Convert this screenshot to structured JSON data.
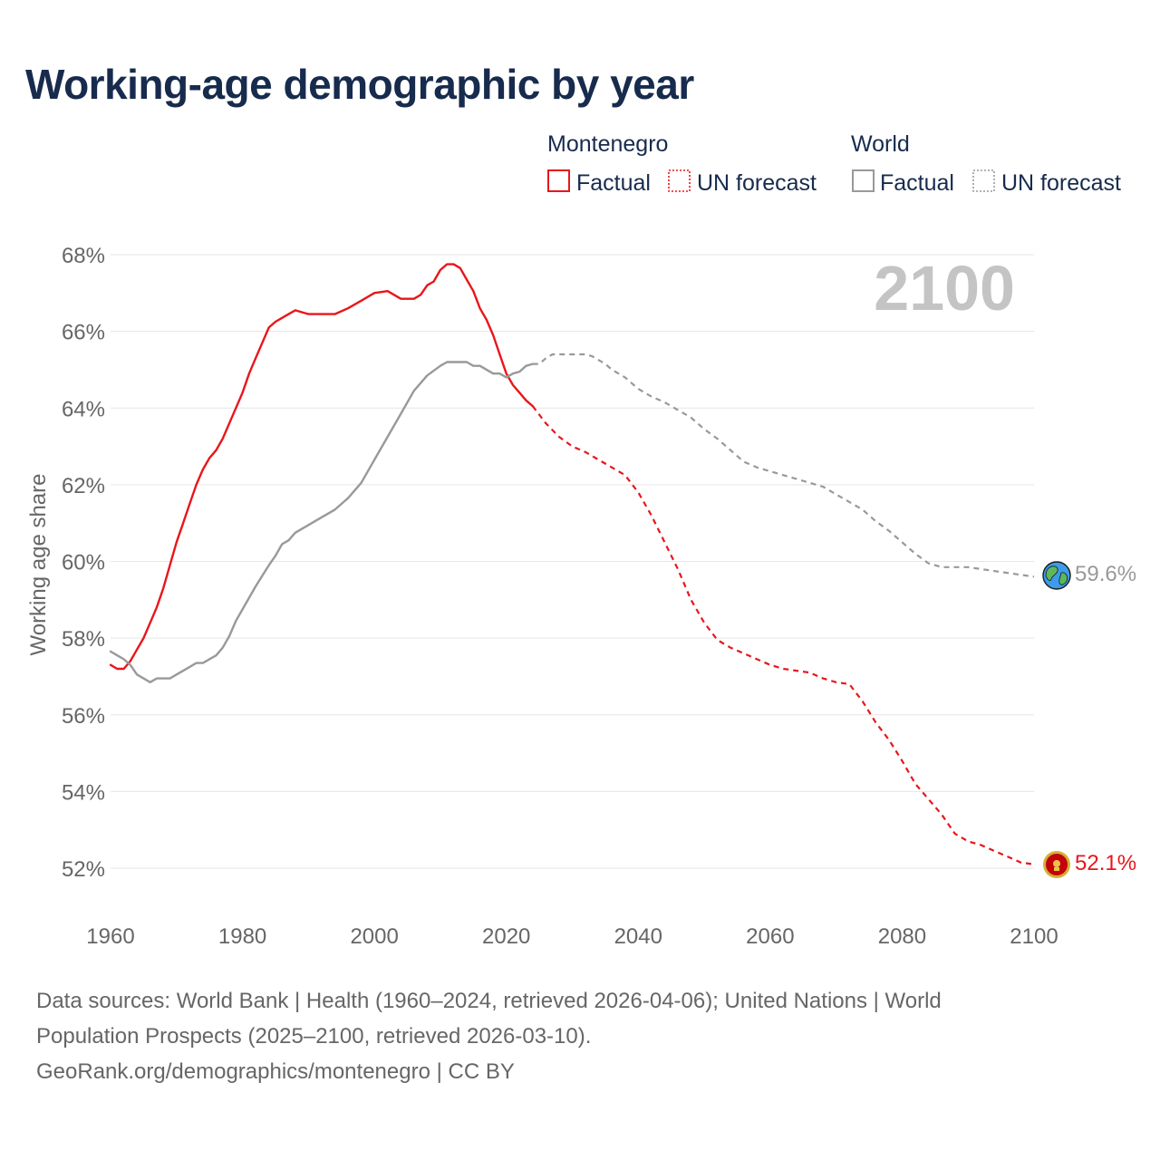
{
  "title": "Working-age demographic by year",
  "legend": {
    "groups": [
      {
        "name": "Montenegro",
        "color": "#e8161b",
        "factual_label": "Factual",
        "forecast_label": "UN forecast"
      },
      {
        "name": "World",
        "color": "#999999",
        "factual_label": "Factual",
        "forecast_label": "UN forecast"
      }
    ]
  },
  "year_label": "2100",
  "end_labels": {
    "world": "59.6%",
    "montenegro": "52.1%"
  },
  "markers": {
    "world": "globe-icon",
    "montenegro": "montenegro-flag-icon"
  },
  "colors": {
    "montenegro": "#e8161b",
    "world": "#999999",
    "title": "#172b4d",
    "grid": "#e6e6e6",
    "axis_text": "#666666",
    "legend_text": "#172b4d"
  },
  "source": {
    "line1": "Data sources: World Bank | Health (1960–2024, retrieved 2026-04-06); United Nations | World",
    "line2": "Population Prospects (2025–2100, retrieved 2026-03-10).",
    "line3": "GeoRank.org/demographics/montenegro | CC BY"
  },
  "chart_data": {
    "type": "line",
    "title": "Working-age demographic by year",
    "xlabel": "",
    "ylabel": "Working age share",
    "xlim": [
      1960,
      2100
    ],
    "ylim": [
      51,
      68
    ],
    "x_ticks": [
      1960,
      1980,
      2000,
      2020,
      2040,
      2060,
      2080,
      2100
    ],
    "x_tick_labels": [
      "1960",
      "1980",
      "2000",
      "2020",
      "2040",
      "2060",
      "2080",
      "2100"
    ],
    "y_ticks": [
      52,
      54,
      56,
      58,
      60,
      62,
      64,
      66,
      68
    ],
    "y_tick_labels": [
      "52%",
      "54%",
      "56%",
      "58%",
      "60%",
      "62%",
      "64%",
      "66%",
      "68%"
    ],
    "grid": true,
    "series": [
      {
        "name": "Montenegro",
        "segment": "Factual",
        "style": "solid",
        "points": [
          [
            1960,
            57.3
          ],
          [
            1961,
            57.2
          ],
          [
            1962,
            57.2
          ],
          [
            1963,
            57.4
          ],
          [
            1964,
            57.7
          ],
          [
            1965,
            58.0
          ],
          [
            1966,
            58.4
          ],
          [
            1967,
            58.8
          ],
          [
            1968,
            59.3
          ],
          [
            1969,
            59.9
          ],
          [
            1970,
            60.5
          ],
          [
            1971,
            61.0
          ],
          [
            1972,
            61.5
          ],
          [
            1973,
            62.0
          ],
          [
            1974,
            62.4
          ],
          [
            1975,
            62.7
          ],
          [
            1976,
            62.9
          ],
          [
            1977,
            63.2
          ],
          [
            1978,
            63.6
          ],
          [
            1979,
            64.0
          ],
          [
            1980,
            64.4
          ],
          [
            1981,
            64.9
          ],
          [
            1982,
            65.3
          ],
          [
            1983,
            65.7
          ],
          [
            1984,
            66.1
          ],
          [
            1985,
            66.25
          ],
          [
            1986,
            66.35
          ],
          [
            1987,
            66.45
          ],
          [
            1988,
            66.55
          ],
          [
            1989,
            66.5
          ],
          [
            1990,
            66.45
          ],
          [
            1992,
            66.45
          ],
          [
            1994,
            66.45
          ],
          [
            1996,
            66.6
          ],
          [
            1998,
            66.8
          ],
          [
            2000,
            67.0
          ],
          [
            2002,
            67.05
          ],
          [
            2004,
            66.85
          ],
          [
            2006,
            66.85
          ],
          [
            2007,
            66.95
          ],
          [
            2008,
            67.2
          ],
          [
            2009,
            67.3
          ],
          [
            2010,
            67.6
          ],
          [
            2011,
            67.75
          ],
          [
            2012,
            67.75
          ],
          [
            2013,
            67.65
          ],
          [
            2014,
            67.35
          ],
          [
            2015,
            67.05
          ],
          [
            2016,
            66.6
          ],
          [
            2017,
            66.3
          ],
          [
            2018,
            65.9
          ],
          [
            2019,
            65.4
          ],
          [
            2020,
            64.9
          ],
          [
            2021,
            64.6
          ],
          [
            2022,
            64.4
          ],
          [
            2023,
            64.2
          ],
          [
            2024,
            64.05
          ]
        ]
      },
      {
        "name": "Montenegro",
        "segment": "UN forecast",
        "style": "dashed",
        "points": [
          [
            2024,
            64.05
          ],
          [
            2026,
            63.6
          ],
          [
            2028,
            63.25
          ],
          [
            2030,
            63.0
          ],
          [
            2032,
            62.85
          ],
          [
            2034,
            62.65
          ],
          [
            2036,
            62.45
          ],
          [
            2038,
            62.25
          ],
          [
            2040,
            61.8
          ],
          [
            2042,
            61.2
          ],
          [
            2044,
            60.5
          ],
          [
            2046,
            59.8
          ],
          [
            2048,
            59.0
          ],
          [
            2050,
            58.4
          ],
          [
            2052,
            57.95
          ],
          [
            2054,
            57.75
          ],
          [
            2056,
            57.6
          ],
          [
            2058,
            57.45
          ],
          [
            2060,
            57.3
          ],
          [
            2062,
            57.2
          ],
          [
            2064,
            57.15
          ],
          [
            2066,
            57.1
          ],
          [
            2068,
            56.95
          ],
          [
            2070,
            56.85
          ],
          [
            2072,
            56.8
          ],
          [
            2074,
            56.35
          ],
          [
            2076,
            55.8
          ],
          [
            2078,
            55.35
          ],
          [
            2080,
            54.8
          ],
          [
            2082,
            54.2
          ],
          [
            2084,
            53.8
          ],
          [
            2086,
            53.4
          ],
          [
            2088,
            52.9
          ],
          [
            2090,
            52.7
          ],
          [
            2092,
            52.6
          ],
          [
            2094,
            52.45
          ],
          [
            2096,
            52.3
          ],
          [
            2098,
            52.15
          ],
          [
            2100,
            52.1
          ]
        ]
      },
      {
        "name": "World",
        "segment": "Factual",
        "style": "solid",
        "points": [
          [
            1960,
            57.65
          ],
          [
            1962,
            57.45
          ],
          [
            1963,
            57.3
          ],
          [
            1964,
            57.05
          ],
          [
            1966,
            56.85
          ],
          [
            1967,
            56.95
          ],
          [
            1968,
            56.95
          ],
          [
            1969,
            56.95
          ],
          [
            1970,
            57.05
          ],
          [
            1972,
            57.25
          ],
          [
            1973,
            57.35
          ],
          [
            1974,
            57.35
          ],
          [
            1976,
            57.55
          ],
          [
            1977,
            57.75
          ],
          [
            1978,
            58.05
          ],
          [
            1979,
            58.45
          ],
          [
            1980,
            58.75
          ],
          [
            1982,
            59.35
          ],
          [
            1984,
            59.9
          ],
          [
            1985,
            60.15
          ],
          [
            1986,
            60.45
          ],
          [
            1987,
            60.55
          ],
          [
            1988,
            60.75
          ],
          [
            1990,
            60.95
          ],
          [
            1992,
            61.15
          ],
          [
            1994,
            61.35
          ],
          [
            1996,
            61.65
          ],
          [
            1998,
            62.05
          ],
          [
            2000,
            62.65
          ],
          [
            2002,
            63.25
          ],
          [
            2004,
            63.85
          ],
          [
            2006,
            64.45
          ],
          [
            2008,
            64.85
          ],
          [
            2010,
            65.1
          ],
          [
            2011,
            65.2
          ],
          [
            2012,
            65.2
          ],
          [
            2014,
            65.2
          ],
          [
            2015,
            65.1
          ],
          [
            2016,
            65.1
          ],
          [
            2017,
            65.0
          ],
          [
            2018,
            64.9
          ],
          [
            2019,
            64.9
          ],
          [
            2020,
            64.8
          ],
          [
            2021,
            64.9
          ],
          [
            2022,
            64.95
          ],
          [
            2023,
            65.1
          ],
          [
            2024,
            65.15
          ]
        ]
      },
      {
        "name": "World",
        "segment": "UN forecast",
        "style": "dashed",
        "points": [
          [
            2024,
            65.15
          ],
          [
            2025,
            65.15
          ],
          [
            2026,
            65.3
          ],
          [
            2027,
            65.4
          ],
          [
            2030,
            65.4
          ],
          [
            2032,
            65.4
          ],
          [
            2033,
            65.35
          ],
          [
            2035,
            65.15
          ],
          [
            2036,
            65.0
          ],
          [
            2038,
            64.8
          ],
          [
            2040,
            64.5
          ],
          [
            2042,
            64.3
          ],
          [
            2044,
            64.15
          ],
          [
            2046,
            63.95
          ],
          [
            2048,
            63.75
          ],
          [
            2050,
            63.45
          ],
          [
            2052,
            63.2
          ],
          [
            2054,
            62.9
          ],
          [
            2056,
            62.6
          ],
          [
            2058,
            62.45
          ],
          [
            2060,
            62.35
          ],
          [
            2062,
            62.25
          ],
          [
            2064,
            62.15
          ],
          [
            2066,
            62.05
          ],
          [
            2068,
            61.95
          ],
          [
            2070,
            61.75
          ],
          [
            2072,
            61.55
          ],
          [
            2074,
            61.35
          ],
          [
            2076,
            61.05
          ],
          [
            2078,
            60.8
          ],
          [
            2080,
            60.5
          ],
          [
            2082,
            60.2
          ],
          [
            2084,
            59.95
          ],
          [
            2086,
            59.85
          ],
          [
            2088,
            59.85
          ],
          [
            2090,
            59.85
          ],
          [
            2092,
            59.8
          ],
          [
            2094,
            59.75
          ],
          [
            2096,
            59.7
          ],
          [
            2098,
            59.65
          ],
          [
            2100,
            59.6
          ]
        ]
      }
    ]
  }
}
